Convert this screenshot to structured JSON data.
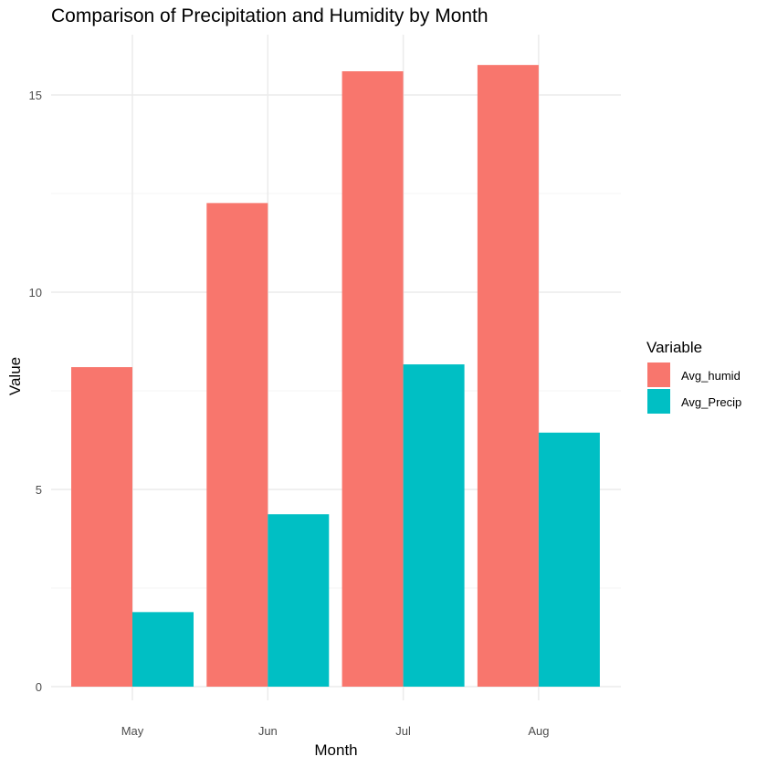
{
  "chart_data": {
    "type": "bar",
    "title": "Comparison of Precipitation and Humidity by Month",
    "xlabel": "Month",
    "ylabel": "Value",
    "categories": [
      "May",
      "Jun",
      "Jul",
      "Aug"
    ],
    "series": [
      {
        "name": "Avg_humid",
        "color": "#f8766d",
        "values": [
          8.1,
          12.26,
          15.6,
          15.76
        ]
      },
      {
        "name": "Avg_Precip",
        "color": "#00bfc4",
        "values": [
          1.89,
          4.37,
          8.17,
          6.44
        ]
      }
    ],
    "ylim": [
      0,
      16
    ],
    "yticks": [
      0,
      5,
      10,
      15
    ],
    "grid": true,
    "legend": {
      "title": "Variable",
      "position": "right"
    },
    "colors": {
      "grid_major": "#ebebeb",
      "grid_minor": "#f5f5f5"
    }
  }
}
